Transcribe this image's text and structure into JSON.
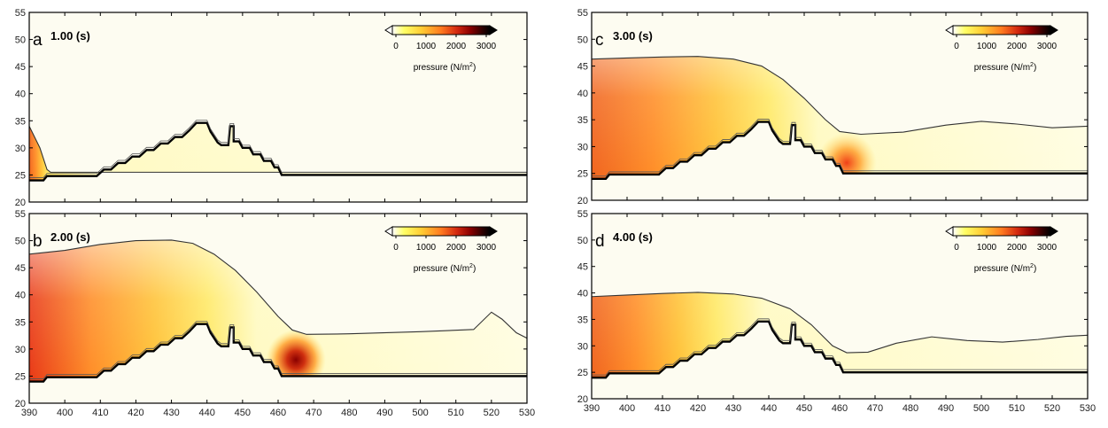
{
  "chart_data": {
    "type": "heatmap",
    "colorbar": {
      "ticks": [
        "0",
        "1000",
        "2000",
        "3000"
      ],
      "label": "pressure (N/m",
      "label_sup": "2",
      "label_end": ")",
      "colors": [
        "#ffffff",
        "#ffff55",
        "#ffcc33",
        "#ff8020",
        "#e03010",
        "#a00000",
        "#400000",
        "#000000"
      ]
    },
    "xlim": [
      390,
      530
    ],
    "ylim": [
      20,
      55
    ],
    "xticks": [
      "390",
      "400",
      "410",
      "420",
      "430",
      "440",
      "450",
      "460",
      "470",
      "480",
      "490",
      "500",
      "510",
      "520",
      "530"
    ],
    "yticks": [
      "20",
      "25",
      "30",
      "35",
      "40",
      "45",
      "50",
      "55"
    ],
    "panels": [
      {
        "id": "a",
        "letter": "a",
        "time_value": "1.00",
        "time_unit": "(s)",
        "surface": [
          [
            390,
            34
          ],
          [
            393,
            30
          ],
          [
            395,
            26
          ],
          [
            396,
            25.5
          ],
          [
            530,
            25.5
          ]
        ],
        "hot": {
          "x_end": 395,
          "y_top": 30,
          "intensity": 0.8
        },
        "mid": null
      },
      {
        "id": "b",
        "letter": "b",
        "time_value": "2.00",
        "time_unit": "(s)",
        "surface": [
          [
            390,
            47.5
          ],
          [
            400,
            48.2
          ],
          [
            410,
            49.3
          ],
          [
            420,
            50
          ],
          [
            430,
            50.1
          ],
          [
            436,
            49.5
          ],
          [
            442,
            47.5
          ],
          [
            448,
            44.5
          ],
          [
            454,
            40.5
          ],
          [
            460,
            36
          ],
          [
            464,
            33.5
          ],
          [
            468,
            32.7
          ],
          [
            480,
            32.8
          ],
          [
            500,
            33.2
          ],
          [
            515,
            33.6
          ],
          [
            520,
            36.8
          ],
          [
            523,
            35.5
          ],
          [
            527,
            33
          ],
          [
            530,
            32
          ]
        ],
        "hot": {
          "x_end": 440,
          "y_top": 38,
          "intensity": 0.95
        },
        "mid": {
          "x": 465,
          "y": 28,
          "intensity": 1.0
        }
      },
      {
        "id": "c",
        "letter": "c",
        "time_value": "3.00",
        "time_unit": "(s)",
        "surface": [
          [
            390,
            46.3
          ],
          [
            400,
            46.5
          ],
          [
            410,
            46.7
          ],
          [
            420,
            46.8
          ],
          [
            430,
            46.3
          ],
          [
            438,
            45
          ],
          [
            444,
            42.5
          ],
          [
            450,
            39
          ],
          [
            456,
            35
          ],
          [
            460,
            32.8
          ],
          [
            466,
            32.3
          ],
          [
            478,
            32.7
          ],
          [
            490,
            34
          ],
          [
            500,
            34.7
          ],
          [
            510,
            34.2
          ],
          [
            520,
            33.5
          ],
          [
            530,
            33.8
          ]
        ],
        "hot": {
          "x_end": 440,
          "y_top": 40,
          "intensity": 0.85
        },
        "mid": {
          "x": 462,
          "y": 27,
          "intensity": 0.6
        }
      },
      {
        "id": "d",
        "letter": "d",
        "time_value": "4.00",
        "time_unit": "(s)",
        "surface": [
          [
            390,
            39.3
          ],
          [
            400,
            39.6
          ],
          [
            410,
            39.9
          ],
          [
            420,
            40.1
          ],
          [
            430,
            39.8
          ],
          [
            438,
            39
          ],
          [
            446,
            37
          ],
          [
            452,
            34
          ],
          [
            458,
            30
          ],
          [
            462,
            28.7
          ],
          [
            468,
            28.8
          ],
          [
            476,
            30.5
          ],
          [
            486,
            31.7
          ],
          [
            496,
            31
          ],
          [
            506,
            30.7
          ],
          [
            516,
            31.2
          ],
          [
            524,
            31.8
          ],
          [
            530,
            32
          ]
        ],
        "hot": {
          "x_end": 425,
          "y_top": 35,
          "intensity": 0.7
        },
        "mid": null
      }
    ]
  }
}
